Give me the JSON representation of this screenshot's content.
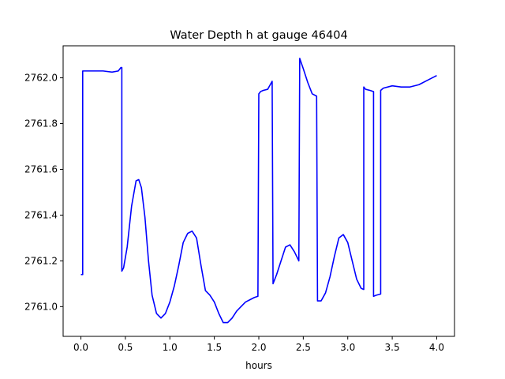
{
  "chart_data": {
    "type": "line",
    "title": "Water Depth h at gauge 46404",
    "xlabel": "hours",
    "ylabel": "",
    "xlim": [
      -0.2,
      4.2
    ],
    "ylim": [
      2760.87,
      2762.14
    ],
    "xticks": [
      0.0,
      0.5,
      1.0,
      1.5,
      2.0,
      2.5,
      3.0,
      3.5,
      4.0
    ],
    "xtick_labels": [
      "0.0",
      "0.5",
      "1.0",
      "1.5",
      "2.0",
      "2.5",
      "3.0",
      "3.5",
      "4.0"
    ],
    "yticks": [
      2761.0,
      2761.2,
      2761.4,
      2761.6,
      2761.8,
      2762.0
    ],
    "ytick_labels": [
      "2761.0",
      "2761.2",
      "2761.4",
      "2761.6",
      "2761.8",
      "2762.0"
    ],
    "grid": false,
    "series": [
      {
        "color": "#0000ff",
        "x": [
          0.0,
          0.02,
          0.02,
          0.05,
          0.15,
          0.25,
          0.35,
          0.42,
          0.45,
          0.46,
          0.46,
          0.48,
          0.52,
          0.57,
          0.62,
          0.65,
          0.68,
          0.72,
          0.76,
          0.8,
          0.85,
          0.9,
          0.95,
          1.0,
          1.05,
          1.1,
          1.15,
          1.2,
          1.25,
          1.3,
          1.35,
          1.4,
          1.45,
          1.5,
          1.55,
          1.6,
          1.65,
          1.7,
          1.75,
          1.8,
          1.85,
          1.9,
          1.95,
          1.99,
          2.0,
          2.02,
          2.05,
          2.1,
          2.15,
          2.16,
          2.2,
          2.25,
          2.3,
          2.35,
          2.4,
          2.45,
          2.46,
          2.5,
          2.55,
          2.6,
          2.65,
          2.66,
          2.7,
          2.75,
          2.8,
          2.85,
          2.9,
          2.95,
          3.0,
          3.05,
          3.1,
          3.15,
          3.18,
          3.18,
          3.2,
          3.25,
          3.29,
          3.29,
          3.32,
          3.37,
          3.37,
          3.4,
          3.5,
          3.6,
          3.7,
          3.8,
          3.9,
          4.0
        ],
        "y": [
          2761.14,
          2761.14,
          2762.03,
          2762.03,
          2762.03,
          2762.03,
          2762.025,
          2762.03,
          2762.045,
          2762.045,
          2761.155,
          2761.17,
          2761.26,
          2761.44,
          2761.55,
          2761.555,
          2761.52,
          2761.39,
          2761.2,
          2761.05,
          2760.97,
          2760.95,
          2760.97,
          2761.02,
          2761.09,
          2761.18,
          2761.28,
          2761.32,
          2761.33,
          2761.3,
          2761.18,
          2761.07,
          2761.05,
          2761.02,
          2760.97,
          2760.93,
          2760.93,
          2760.95,
          2760.98,
          2761.0,
          2761.02,
          2761.03,
          2761.04,
          2761.045,
          2761.93,
          2761.94,
          2761.945,
          2761.95,
          2761.985,
          2761.1,
          2761.14,
          2761.2,
          2761.26,
          2761.27,
          2761.24,
          2761.2,
          2762.085,
          2762.04,
          2761.98,
          2761.93,
          2761.92,
          2761.025,
          2761.025,
          2761.06,
          2761.13,
          2761.22,
          2761.3,
          2761.315,
          2761.28,
          2761.2,
          2761.12,
          2761.08,
          2761.075,
          2761.96,
          2761.95,
          2761.945,
          2761.94,
          2761.045,
          2761.05,
          2761.055,
          2761.945,
          2761.955,
          2761.965,
          2761.96,
          2761.96,
          2761.97,
          2761.99,
          2762.01
        ]
      }
    ]
  }
}
